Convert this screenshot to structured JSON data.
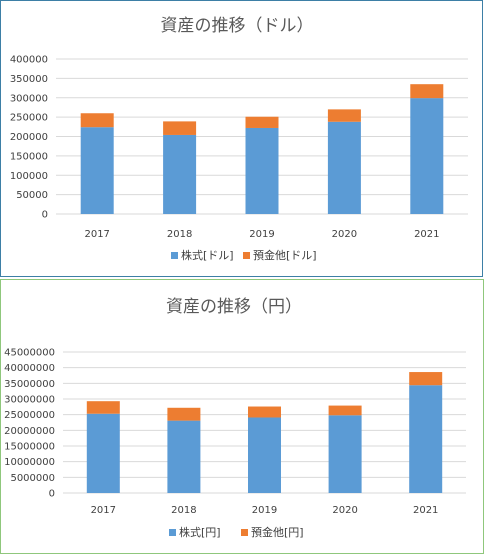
{
  "chart_data": [
    {
      "type": "bar",
      "stacked": true,
      "title": "資産の推移（ドル）",
      "categories": [
        "2017",
        "2018",
        "2019",
        "2020",
        "2021"
      ],
      "series": [
        {
          "name": "株式[ドル]",
          "color": "#5b9bd5",
          "values": [
            224000,
            204000,
            222000,
            238000,
            299000
          ]
        },
        {
          "name": "預金他[ドル]",
          "color": "#ed7d31",
          "values": [
            36000,
            35000,
            29000,
            32000,
            36000
          ]
        }
      ],
      "y_ticks": [
        "0",
        "50000",
        "100000",
        "150000",
        "200000",
        "250000",
        "300000",
        "350000",
        "400000"
      ],
      "ylim": [
        0,
        400000
      ],
      "grid": true,
      "legend": "bottom"
    },
    {
      "type": "bar",
      "stacked": true,
      "title": "資産の推移（円）",
      "categories": [
        "2017",
        "2018",
        "2019",
        "2020",
        "2021"
      ],
      "series": [
        {
          "name": "株式[円]",
          "color": "#5b9bd5",
          "values": [
            25300000,
            23100000,
            24100000,
            24800000,
            34400000
          ]
        },
        {
          "name": "預金他[円]",
          "color": "#ed7d31",
          "values": [
            4000000,
            4100000,
            3500000,
            3100000,
            4200000
          ]
        }
      ],
      "y_ticks": [
        "0",
        "5000000",
        "10000000",
        "15000000",
        "20000000",
        "25000000",
        "30000000",
        "35000000",
        "40000000",
        "45000000"
      ],
      "ylim": [
        0,
        45000000
      ],
      "grid": true,
      "legend": "bottom"
    }
  ]
}
